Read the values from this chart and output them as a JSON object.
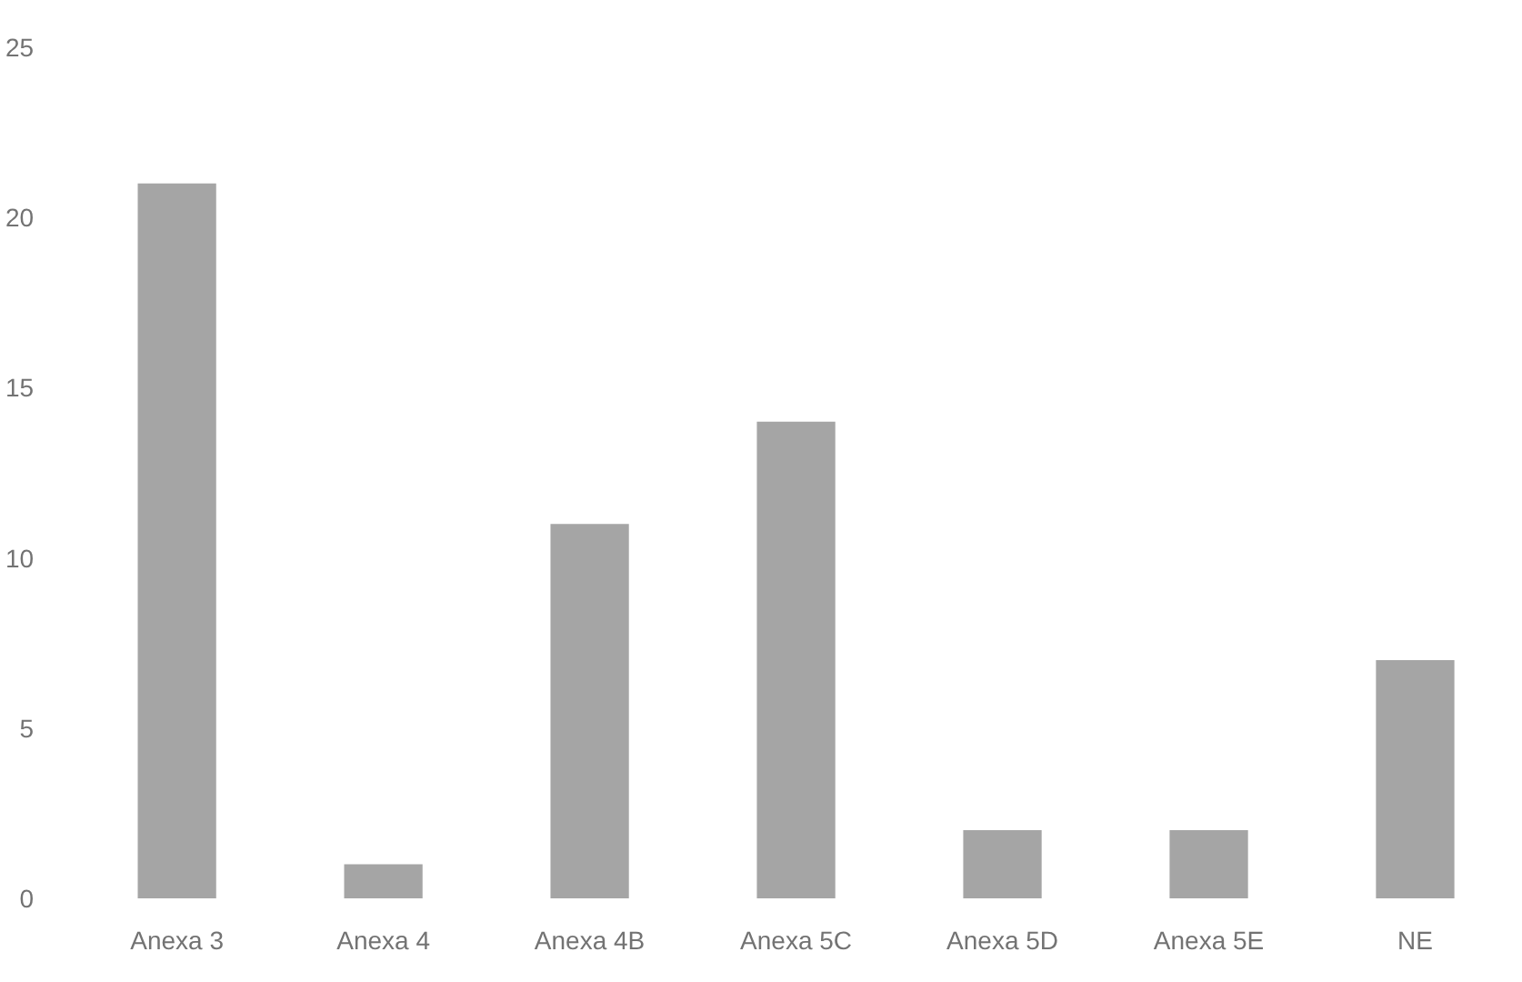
{
  "chart_data": {
    "type": "bar",
    "categories": [
      "Anexa 3",
      "Anexa 4",
      "Anexa 4B",
      "Anexa 5C",
      "Anexa 5D",
      "Anexa 5E",
      "NE"
    ],
    "values": [
      21,
      1,
      11,
      14,
      2,
      2,
      7
    ],
    "color": "#a5a5a5",
    "ylim": [
      0,
      25
    ],
    "yticks": [
      0,
      5,
      10,
      15,
      20,
      25
    ],
    "grid": false
  }
}
